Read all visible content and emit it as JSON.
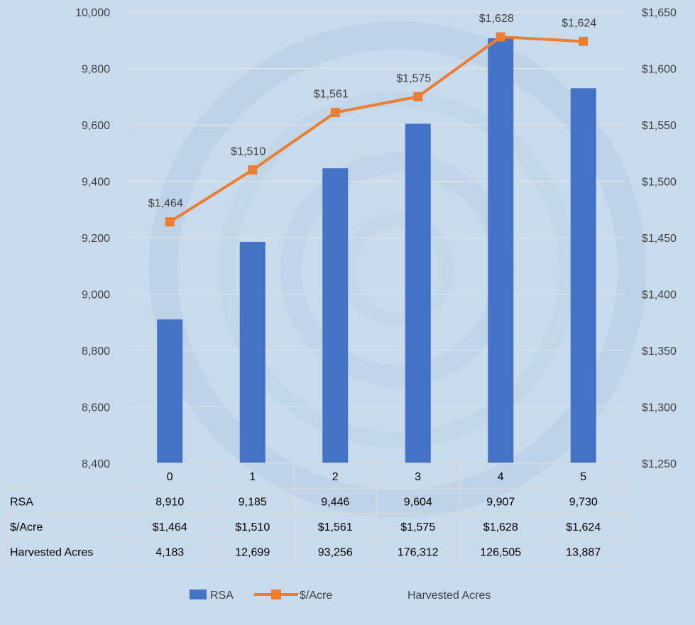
{
  "chart_data": {
    "type": "bar+line",
    "categories": [
      "0",
      "1",
      "2",
      "3",
      "4",
      "5"
    ],
    "series": [
      {
        "name": "RSA",
        "type": "bar",
        "axis": "left",
        "values": [
          8910,
          9185,
          9446,
          9604,
          9907,
          9730
        ]
      },
      {
        "name": "$/Acre",
        "type": "line",
        "axis": "right",
        "values": [
          1464,
          1510,
          1561,
          1575,
          1628,
          1624
        ],
        "labels": [
          "$1,464",
          "$1,510",
          "$1,561",
          "$1,575",
          "$1,628",
          "$1,624"
        ]
      },
      {
        "name": "Harvested Acres",
        "type": "table-only",
        "values": [
          4183,
          12699,
          93256,
          176312,
          126505,
          13887
        ]
      }
    ],
    "left_axis": {
      "min": 8400,
      "max": 10000,
      "step": 200,
      "tick_labels": [
        "8,400",
        "8,600",
        "8,800",
        "9,000",
        "9,200",
        "9,400",
        "9,600",
        "9,800",
        "10,000"
      ]
    },
    "right_axis": {
      "min": 1250,
      "max": 1650,
      "step": 50,
      "tick_labels": [
        "$1,250",
        "$1,300",
        "$1,350",
        "$1,400",
        "$1,450",
        "$1,500",
        "$1,550",
        "$1,600",
        "$1,650"
      ]
    },
    "grid": true,
    "legend": "bottom",
    "data_table": {
      "rows": [
        {
          "label": "RSA",
          "cells": [
            "8,910",
            "9,185",
            "9,446",
            "9,604",
            "9,907",
            "9,730"
          ]
        },
        {
          "label": "$/Acre",
          "cells": [
            "$1,464",
            "$1,510",
            "$1,561",
            "$1,575",
            "$1,628",
            "$1,624"
          ]
        },
        {
          "label": "Harvested Acres",
          "cells": [
            "4,183",
            "12,699",
            "93,256",
            "176,312",
            "126,505",
            "13,887"
          ]
        }
      ]
    },
    "colors": {
      "bar": "#4472c4",
      "line": "#ed7d31",
      "text": "#404040",
      "grid": "#e6e6e6",
      "table_border": "#d9d9d9"
    }
  }
}
